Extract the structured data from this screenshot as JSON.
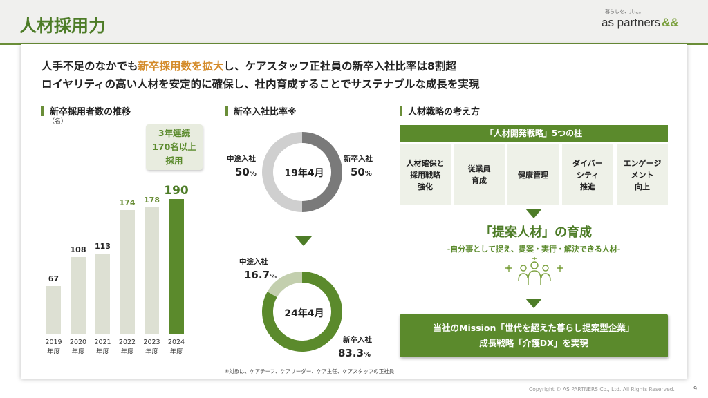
{
  "header": {
    "title": "人材採用力",
    "logo_tagline": "暮らしを、共に。",
    "logo_text": "as partners",
    "logo_mark": "&&"
  },
  "headline": {
    "line1_pre": "人手不足のなかでも",
    "line1_highlight": "新卒採用数を拡大",
    "line1_post": "し、ケアスタッフ正社員の新卒入社比率は8割超",
    "line2": "ロイヤリティの高い人材を安定的に確保し、社内育成することでサステナブルな成長を実現"
  },
  "sections": {
    "hires": "新卒採用者数の推移",
    "ratio": "新卒入社比率※",
    "strategy": "人材戦略の考え方"
  },
  "hires_unit": "（名）",
  "badge": {
    "line1": "3年連続",
    "line2": "170名以上",
    "line3": "採用"
  },
  "chart_data": [
    {
      "type": "bar",
      "title": "新卒採用者数の推移",
      "ylabel": "（名）",
      "categories": [
        "2019\n年度",
        "2020\n年度",
        "2021\n年度",
        "2022\n年度",
        "2023\n年度",
        "2024\n年度"
      ],
      "values": [
        67,
        108,
        113,
        174,
        178,
        190
      ],
      "colors": [
        "#dde0d3",
        "#dde0d3",
        "#dde0d3",
        "#dde0d3",
        "#dde0d3",
        "#5b8a2c"
      ],
      "label_colors": [
        "#222222",
        "#222222",
        "#222222",
        "#6a8e38",
        "#6a8e38",
        "#4d7c27"
      ],
      "ylim": [
        0,
        190
      ]
    },
    {
      "type": "pie",
      "title": "19年4月",
      "labels": [
        "中途入社",
        "新卒入社"
      ],
      "values": [
        50,
        50
      ],
      "value_text": [
        "50",
        "50"
      ],
      "unit": "%",
      "colors": [
        "#cfcfcf",
        "#7a7a7a"
      ]
    },
    {
      "type": "pie",
      "title": "24年4月",
      "labels": [
        "中途入社",
        "新卒入社"
      ],
      "values": [
        16.7,
        83.3
      ],
      "value_text": [
        "16.7",
        "83.3"
      ],
      "unit": "%",
      "colors": [
        "#c3cfae",
        "#5b8a2c"
      ]
    }
  ],
  "footnote": "※対象は、ケアチーフ、ケアリーダー、ケア主任、ケアスタッフの正社員",
  "strategy": {
    "pillars_title": "「人材開発戦略」5つの柱",
    "pillars": [
      "人材確保と\n採用戦略\n強化",
      "従業員\n育成",
      "健康管理",
      "ダイバー\nシティ\n推進",
      "エンゲージ\nメント\n向上"
    ],
    "talent_title": "「提案人材」の育成",
    "talent_sub": "-自分事として捉え、提案・実行・解決できる人材-",
    "mission_line1": "当社のMission「世代を超えた暮らし提案型企業」",
    "mission_line2": "成長戦略「介護DX」を実現"
  },
  "footer": {
    "copyright": "Copyright © AS PARTNERS Co., Ltd. All Rights Reserved.",
    "page": "9"
  }
}
